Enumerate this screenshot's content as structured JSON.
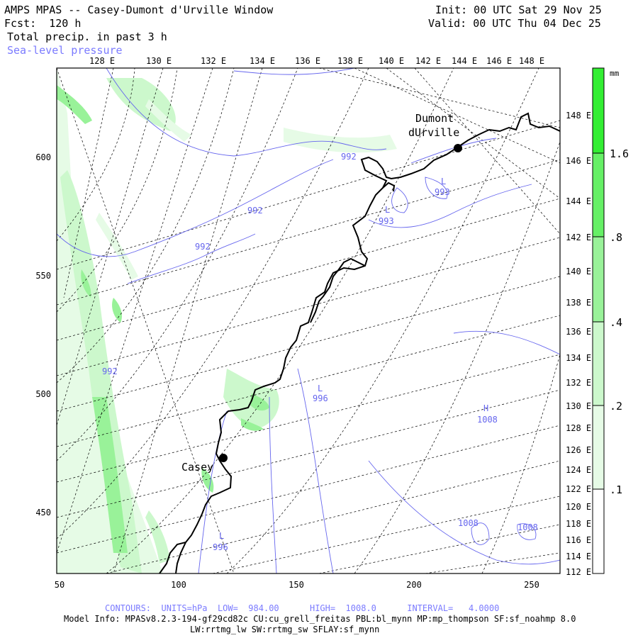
{
  "header": {
    "title": "AMPS MPAS -- Casey-Dumont d'Urville Window",
    "init": "Init: 00 UTC Sat 29 Nov 25",
    "fcst": "Fcst:  120 h",
    "valid": "Valid: 00 UTC Thu 04 Dec 25",
    "field": "Total precip. in past 3 h",
    "contour_field": "Sea-level pressure"
  },
  "map": {
    "top_lon_labels": [
      "128 E",
      "130 E",
      "132 E",
      "134 E",
      "136 E",
      "138 E",
      "140 E",
      "142 E",
      "144 E",
      "146 E",
      "148 E"
    ],
    "right_lon_labels": [
      "148 E",
      "146 E",
      "144 E",
      "142 E",
      "140 E",
      "138 E",
      "136 E",
      "134 E",
      "132 E",
      "130 E",
      "128 E",
      "126 E",
      "124 E",
      "122 E",
      "120 E",
      "118 E",
      "116 E",
      "114 E",
      "112 E"
    ],
    "x_ticks": [
      "50",
      "100",
      "150",
      "200",
      "250"
    ],
    "y_ticks": [
      "600",
      "550",
      "500",
      "450"
    ],
    "stations": [
      {
        "name_line1": "Dumont",
        "name_line2": "dUrville"
      },
      {
        "name_line1": "Casey",
        "name_line2": ""
      }
    ],
    "pressure_labels": [
      "992",
      "992",
      "992",
      "992",
      "993",
      "993",
      "996",
      "1008",
      "1008",
      "1008",
      "996"
    ],
    "pressure_markers": [
      "L",
      "L",
      "L",
      "H",
      "L"
    ]
  },
  "colorbar": {
    "unit": "mm",
    "labels": [
      "1.6",
      ".8",
      ".4",
      ".2",
      ".1"
    ],
    "colors": [
      "#33ee33",
      "#66f066",
      "#99f299",
      "#ccf8cc",
      "#e6fbe6",
      "#ffffff"
    ]
  },
  "footer": {
    "contours": "CONTOURS:  UNITS=hPa  LOW=  984.00      HIGH=  1008.0      INTERVAL=   4.0000",
    "model_info": "Model Info: MPASv8.2.3-194-gf29cd82c CU:cu_grell_freitas PBL:bl_mynn MP:mp_thompson SF:sf_noahmp 8.0",
    "model_info2": "LW:rrtmg_lw SW:rrtmg_sw SFLAY:sf_mynn"
  }
}
